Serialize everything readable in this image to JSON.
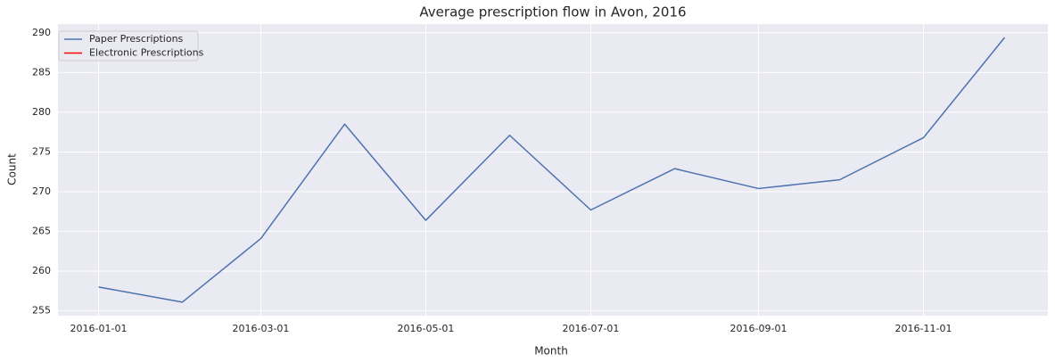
{
  "chart_data": {
    "type": "line",
    "title": "Average prescription flow in Avon, 2016",
    "x_label": "Month",
    "y_label": "Count",
    "x": [
      "2016-01-01",
      "2016-02-01",
      "2016-03-01",
      "2016-04-01",
      "2016-05-01",
      "2016-06-01",
      "2016-07-01",
      "2016-08-01",
      "2016-09-01",
      "2016-10-01",
      "2016-11-01",
      "2016-12-01"
    ],
    "series": [
      {
        "name": "Paper Prescriptions",
        "color": "#4c72b0",
        "values": [
          258.0,
          256.1,
          264.1,
          278.5,
          266.4,
          277.1,
          267.7,
          272.9,
          270.4,
          271.5,
          276.8,
          289.4
        ]
      },
      {
        "name": "Electronic Prescriptions",
        "color": "#ff0000",
        "values": [
          null,
          null,
          null,
          null,
          null,
          null,
          null,
          null,
          null,
          null,
          null,
          null
        ]
      }
    ],
    "xlim": [
      "2015-12-17",
      "2016-12-17"
    ],
    "xticks": [
      "2016-01-01",
      "2016-03-01",
      "2016-05-01",
      "2016-07-01",
      "2016-09-01",
      "2016-11-01"
    ],
    "ylim": [
      254.4,
      291.1
    ],
    "yticks": [
      255,
      260,
      265,
      270,
      275,
      280,
      285,
      290
    ],
    "grid": true,
    "legend": "upper left"
  }
}
